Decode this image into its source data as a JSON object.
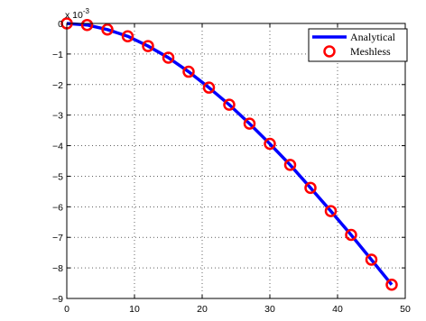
{
  "chart_data": {
    "type": "line",
    "title": "",
    "xlabel": "",
    "ylabel": "",
    "y_multiplier": {
      "base": "x 10",
      "exponent": "-3"
    },
    "xlim": [
      0,
      50
    ],
    "ylim": [
      -9,
      0
    ],
    "y_scale_factor": 0.001,
    "grid": true,
    "legend_position": "top-right",
    "x_ticks": [
      0,
      10,
      20,
      30,
      40,
      50
    ],
    "x_tick_labels": [
      "0",
      "10",
      "20",
      "30",
      "40",
      "50"
    ],
    "y_ticks": [
      0,
      -1,
      -2,
      -3,
      -4,
      -5,
      -6,
      -7,
      -8,
      -9
    ],
    "y_tick_labels": [
      "0",
      "−1",
      "−2",
      "−3",
      "−4",
      "−5",
      "−6",
      "−7",
      "−8",
      "−9"
    ],
    "series": [
      {
        "name": "Analytical",
        "style": "line",
        "color": "#0000ff",
        "x": [
          0,
          3,
          6,
          9,
          12,
          15,
          18,
          21,
          24,
          27,
          30,
          33,
          36,
          39,
          42,
          45,
          48
        ],
        "y": [
          0,
          -0.05,
          -0.2,
          -0.42,
          -0.74,
          -1.12,
          -1.58,
          -2.1,
          -2.66,
          -3.28,
          -3.94,
          -4.63,
          -5.38,
          -6.14,
          -6.92,
          -7.73,
          -8.55
        ]
      },
      {
        "name": "Meshless",
        "style": "markers",
        "marker": "circle",
        "color": "#ff0000",
        "x": [
          0,
          3,
          6,
          9,
          12,
          15,
          18,
          21,
          24,
          27,
          30,
          33,
          36,
          39,
          42,
          45,
          48
        ],
        "y": [
          0,
          -0.05,
          -0.2,
          -0.42,
          -0.74,
          -1.12,
          -1.58,
          -2.1,
          -2.66,
          -3.28,
          -3.94,
          -4.63,
          -5.38,
          -6.14,
          -6.92,
          -7.73,
          -8.55
        ]
      }
    ]
  }
}
